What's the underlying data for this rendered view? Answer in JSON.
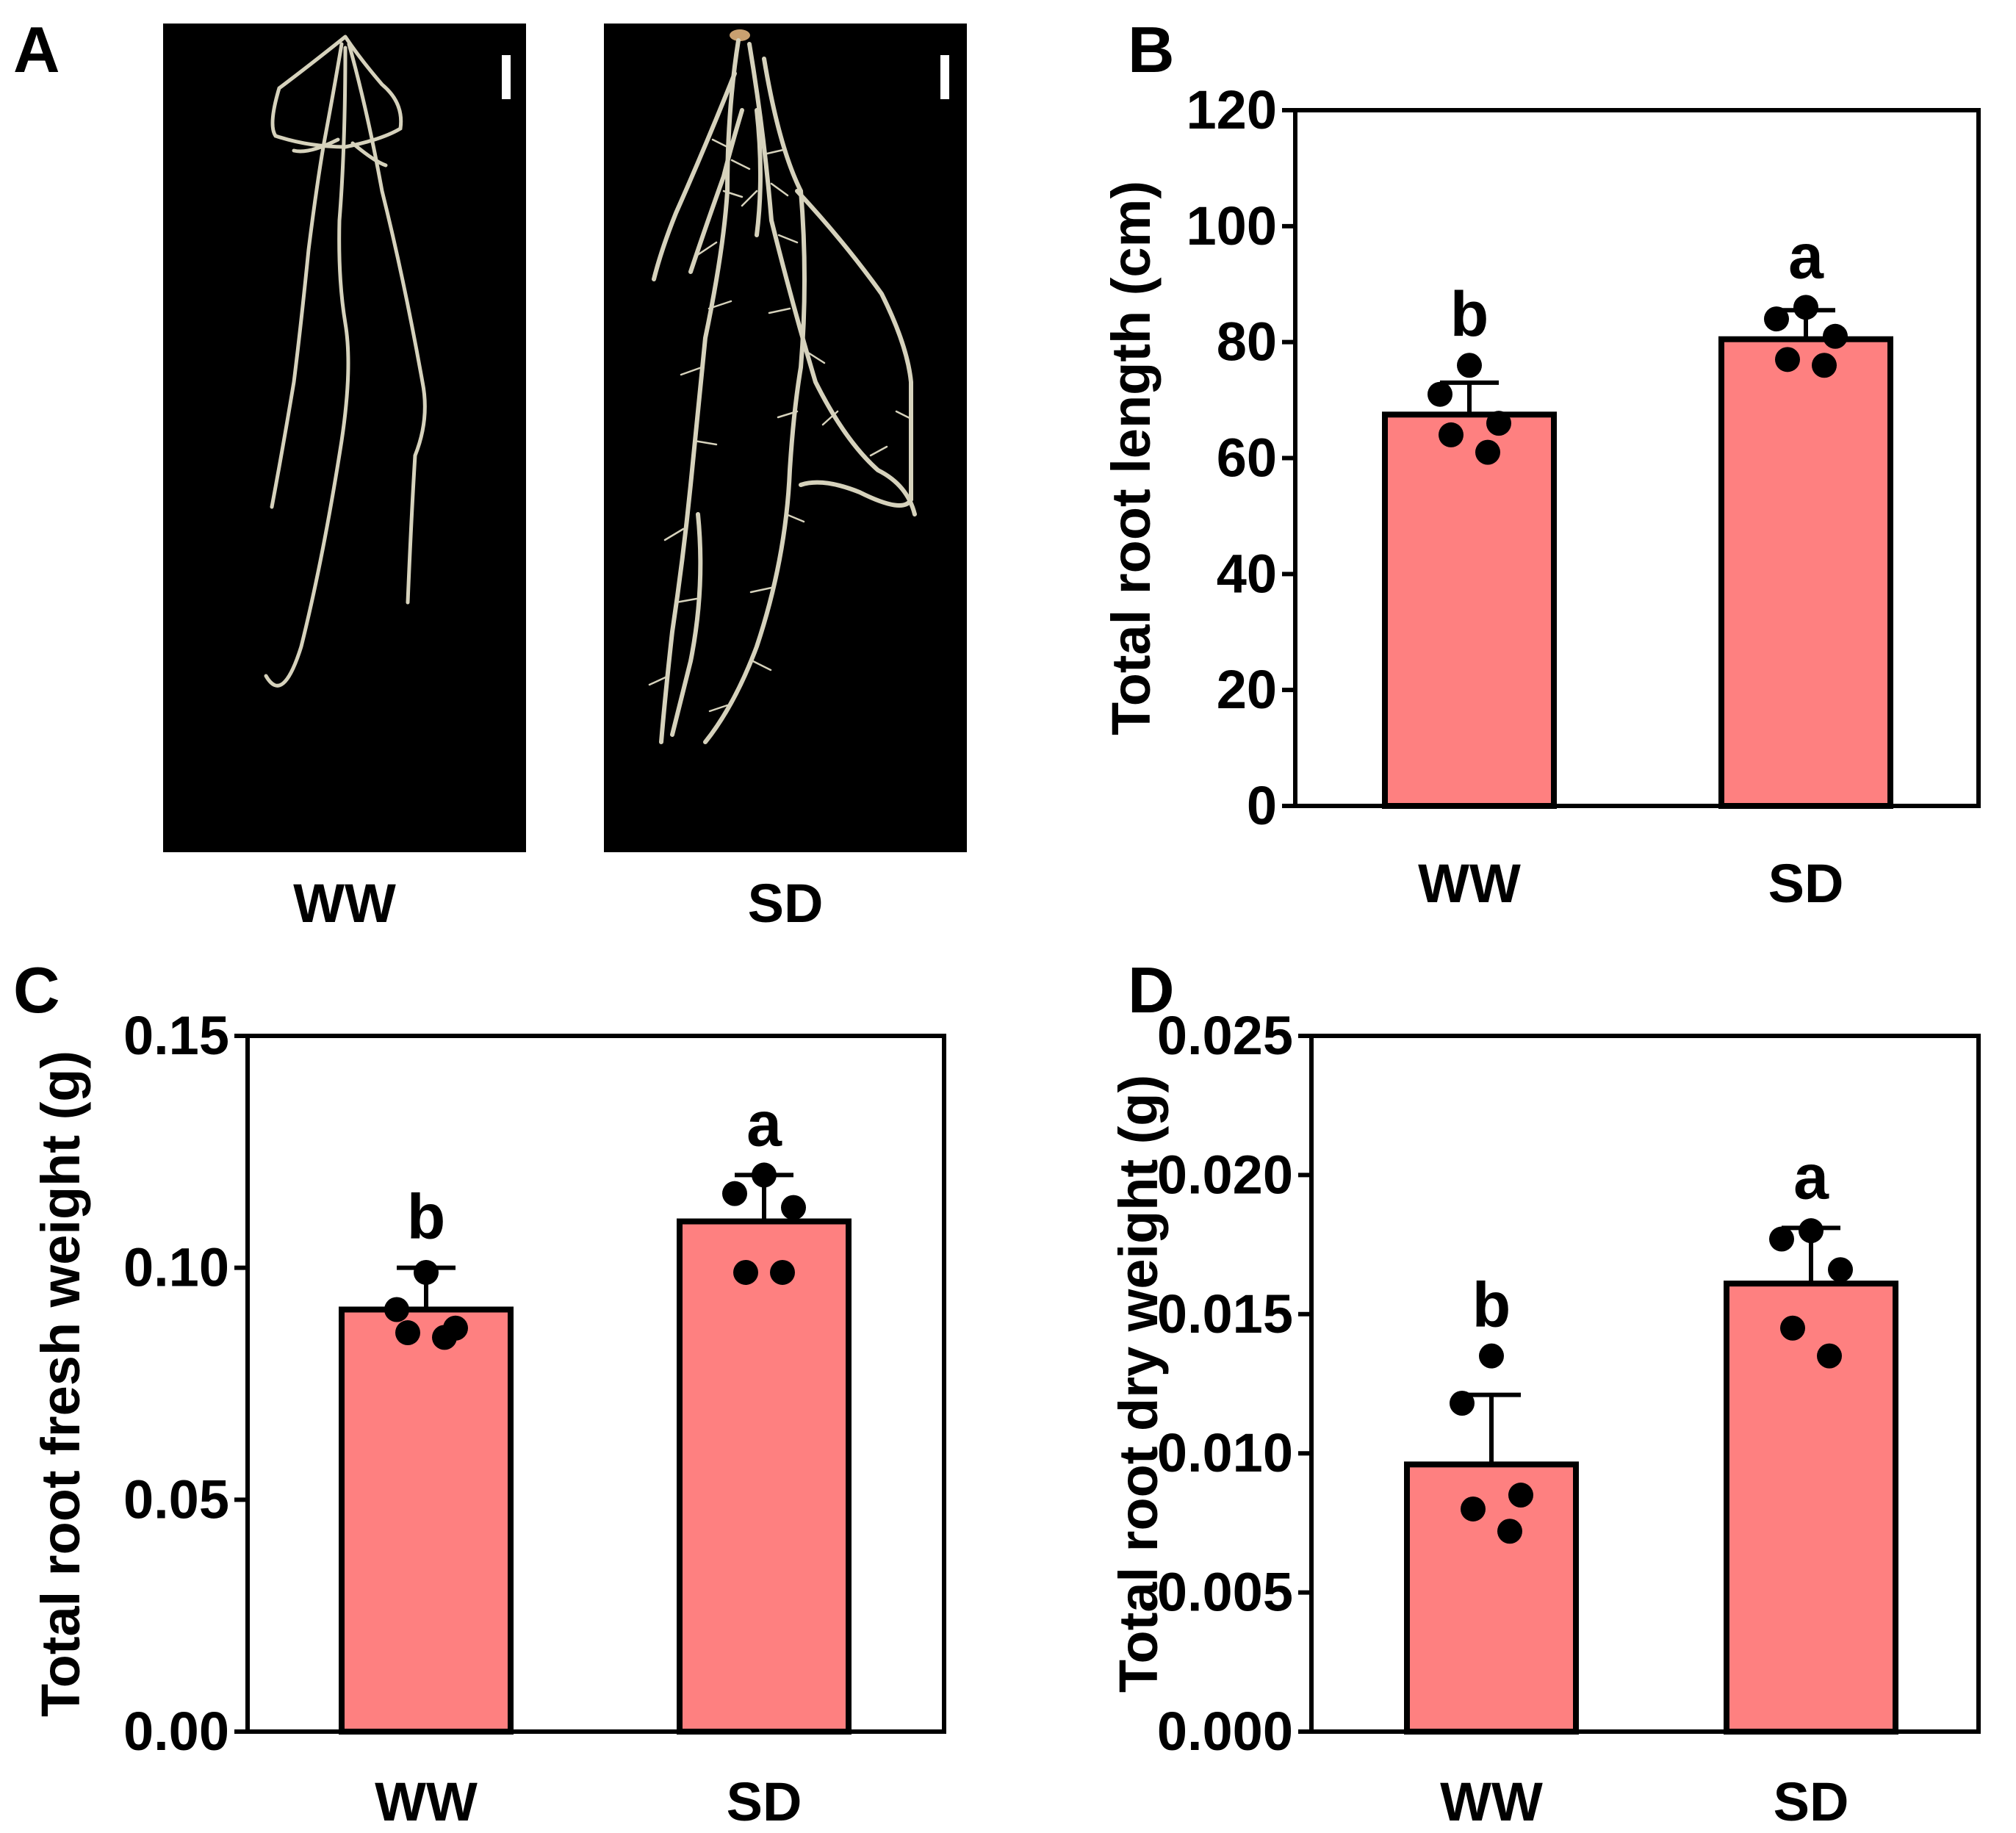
{
  "colors": {
    "bar": "#fe8080",
    "ink": "#000000",
    "photo_bg": "#000000",
    "root": "#d6d2bc"
  },
  "panel_a": {
    "label": "A",
    "photos": [
      {
        "caption": "WW",
        "name": "ww"
      },
      {
        "caption": "SD",
        "name": "sd"
      }
    ]
  },
  "chart_data": [
    {
      "panel": "B",
      "type": "bar",
      "categories": [
        "WW",
        "SD"
      ],
      "values": [
        67.5,
        80.5
      ],
      "errors": [
        5.5,
        5.0
      ],
      "points": [
        [
          76,
          71,
          66,
          64,
          61
        ],
        [
          86,
          84,
          81,
          77,
          76
        ]
      ],
      "significance": [
        "b",
        "a"
      ],
      "ylabel": "Total root length (cm)",
      "ylim": [
        0,
        120
      ],
      "yticks": [
        0,
        20,
        40,
        60,
        80,
        100,
        120
      ],
      "ytick_labels": [
        "0",
        "20",
        "40",
        "60",
        "80",
        "100",
        "120"
      ]
    },
    {
      "panel": "C",
      "type": "bar",
      "categories": [
        "WW",
        "SD"
      ],
      "values": [
        0.091,
        0.11
      ],
      "errors": [
        0.009,
        0.01
      ],
      "points": [
        [
          0.099,
          0.091,
          0.087,
          0.086,
          0.085
        ],
        [
          0.12,
          0.116,
          0.113,
          0.099,
          0.099
        ]
      ],
      "significance": [
        "b",
        "a"
      ],
      "ylabel": "Total root fresh weight (g)",
      "ylim": [
        0,
        0.15
      ],
      "yticks": [
        0,
        0.05,
        0.1,
        0.15
      ],
      "ytick_labels": [
        "0.00",
        "0.05",
        "0.10",
        "0.15"
      ]
    },
    {
      "panel": "D",
      "type": "bar",
      "categories": [
        "WW",
        "SD"
      ],
      "values": [
        0.0096,
        0.0161
      ],
      "errors": [
        0.0025,
        0.002
      ],
      "points": [
        [
          0.0135,
          0.0118,
          0.0085,
          0.008,
          0.0072
        ],
        [
          0.018,
          0.0177,
          0.0166,
          0.0145,
          0.0135
        ]
      ],
      "significance": [
        "b",
        "a"
      ],
      "ylabel": "Total root dry weight (g)",
      "ylim": [
        0,
        0.025
      ],
      "yticks": [
        0,
        0.005,
        0.01,
        0.015,
        0.02,
        0.025
      ],
      "ytick_labels": [
        "0.000",
        "0.005",
        "0.010",
        "0.015",
        "0.020",
        "0.025"
      ]
    }
  ]
}
